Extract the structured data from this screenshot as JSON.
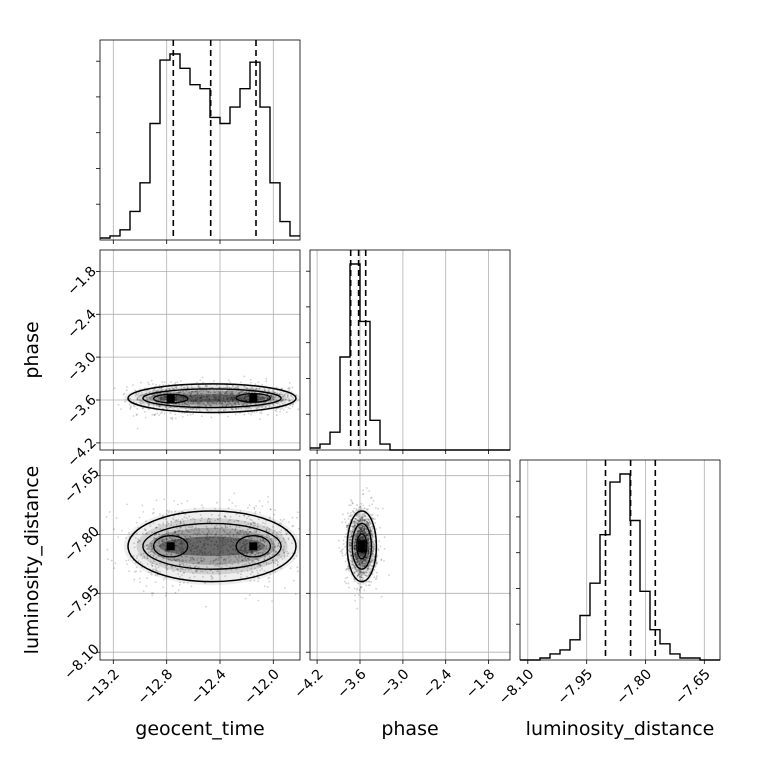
{
  "chart_data": {
    "type": "corner",
    "grid": true,
    "parameters": [
      "geocent_time",
      "phase",
      "luminosity_distance"
    ],
    "axis_labels": {
      "geocent_time": "geocent_time",
      "phase": "phase",
      "luminosity_distance": "luminosity_distance"
    },
    "ranges": {
      "geocent_time": [
        -13.3,
        -11.8
      ],
      "phase": [
        -4.3,
        -1.5
      ],
      "luminosity_distance": [
        -8.12,
        -7.61
      ]
    },
    "ticks": {
      "geocent_time": {
        "values": [
          -13.2,
          -12.8,
          -12.4,
          -12.0
        ],
        "labels": [
          "−13.2",
          "−12.8",
          "−12.4",
          "−12.0"
        ]
      },
      "phase": {
        "values": [
          -4.2,
          -3.6,
          -3.0,
          -2.4,
          -1.8
        ],
        "labels": [
          "−4.2",
          "−3.6",
          "−3.0",
          "−2.4",
          "−1.8"
        ]
      },
      "luminosity_distance": {
        "values": [
          -8.1,
          -7.95,
          -7.8,
          -7.65
        ],
        "labels": [
          "−8.10",
          "−7.95",
          "−7.80",
          "−7.65"
        ]
      }
    },
    "histograms": {
      "geocent_time": {
        "edges": [
          -13.3,
          -13.225,
          -13.15,
          -13.075,
          -13.0,
          -12.925,
          -12.85,
          -12.775,
          -12.7,
          -12.625,
          -12.55,
          -12.475,
          -12.4,
          -12.325,
          -12.25,
          -12.175,
          -12.1,
          -12.025,
          -11.95,
          -11.875,
          -11.8
        ],
        "counts": [
          0.01,
          0.02,
          0.05,
          0.14,
          0.28,
          0.57,
          0.88,
          0.91,
          0.84,
          0.76,
          0.74,
          0.6,
          0.57,
          0.65,
          0.74,
          0.87,
          0.65,
          0.28,
          0.09,
          0.02
        ],
        "quantiles": [
          -12.75,
          -12.47,
          -12.13
        ]
      },
      "phase": {
        "edges": [
          -4.3,
          -4.16,
          -4.02,
          -3.88,
          -3.74,
          -3.6,
          -3.46,
          -3.32,
          -3.18,
          -3.04,
          -2.9,
          -2.76,
          -2.62,
          -2.48,
          -2.34,
          -2.2,
          -2.06,
          -1.92,
          -1.78,
          -1.64,
          -1.5
        ],
        "counts": [
          0.01,
          0.03,
          0.09,
          0.47,
          0.94,
          0.65,
          0.15,
          0.03,
          0.0,
          0.0,
          0.0,
          0.0,
          0.0,
          0.0,
          0.0,
          0.0,
          0.0,
          0.0,
          0.0,
          0.0
        ],
        "quantiles": [
          -3.73,
          -3.62,
          -3.52
        ]
      },
      "luminosity_distance": {
        "edges": [
          -8.12,
          -8.0945,
          -8.069,
          -8.0435,
          -8.018,
          -7.9925,
          -7.967,
          -7.9415,
          -7.916,
          -7.8905,
          -7.865,
          -7.8395,
          -7.814,
          -7.7885,
          -7.763,
          -7.7375,
          -7.712,
          -7.6865,
          -7.661,
          -7.6355,
          -7.61
        ],
        "counts": [
          0.0,
          0.0,
          0.01,
          0.03,
          0.05,
          0.1,
          0.22,
          0.38,
          0.62,
          0.88,
          0.92,
          0.69,
          0.34,
          0.15,
          0.08,
          0.03,
          0.01,
          0.01,
          0.0,
          0.0
        ],
        "quantiles": [
          -7.902,
          -7.838,
          -7.775
        ]
      }
    },
    "posterior_peaks": [
      {
        "geocent_time": -12.77,
        "phase": -3.58,
        "luminosity_distance": -7.83
      },
      {
        "geocent_time": -12.15,
        "phase": -3.57,
        "luminosity_distance": -7.83
      }
    ]
  }
}
